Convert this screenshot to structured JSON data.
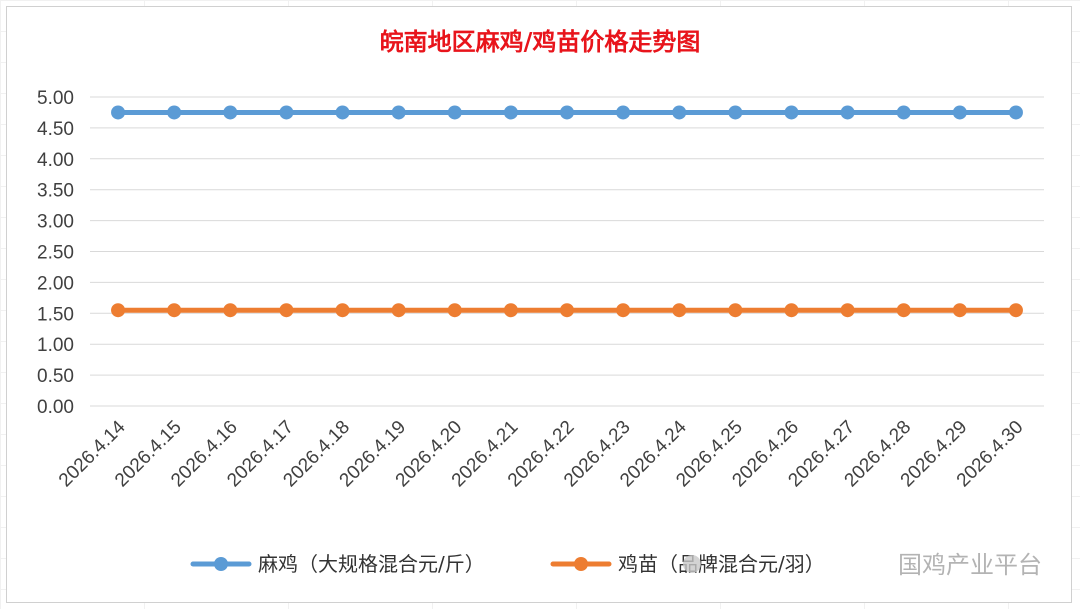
{
  "chart_data": {
    "type": "line",
    "title": "皖南地区麻鸡/鸡苗价格走势图",
    "categories": [
      "2026.4.14",
      "2026.4.15",
      "2026.4.16",
      "2026.4.17",
      "2026.4.18",
      "2026.4.19",
      "2026.4.20",
      "2026.4.21",
      "2026.4.22",
      "2026.4.23",
      "2026.4.24",
      "2026.4.25",
      "2026.4.26",
      "2026.4.27",
      "2026.4.28",
      "2026.4.29",
      "2026.4.30"
    ],
    "series": [
      {
        "name": "麻鸡（大规格混合元/斤）",
        "color": "#5b9bd5",
        "values": [
          4.75,
          4.75,
          4.75,
          4.75,
          4.75,
          4.75,
          4.75,
          4.75,
          4.75,
          4.75,
          4.75,
          4.75,
          4.75,
          4.75,
          4.75,
          4.75,
          4.75
        ]
      },
      {
        "name": "鸡苗（品牌混合元/羽）",
        "color": "#ed7d31",
        "values": [
          1.55,
          1.55,
          1.55,
          1.55,
          1.55,
          1.55,
          1.55,
          1.55,
          1.55,
          1.55,
          1.55,
          1.55,
          1.55,
          1.55,
          1.55,
          1.55,
          1.55
        ]
      }
    ],
    "y_ticks": [
      "0.00",
      "0.50",
      "1.00",
      "1.50",
      "2.00",
      "2.50",
      "3.00",
      "3.50",
      "4.00",
      "4.50",
      "5.00"
    ],
    "ylim": [
      0,
      5
    ],
    "xlabel": "",
    "ylabel": "",
    "grid": true,
    "legend_position": "bottom"
  },
  "watermark": "国鸡产业平台",
  "colors": {
    "title": "#e8141b",
    "grid": "#d9d9d9",
    "tick": "#404040"
  }
}
